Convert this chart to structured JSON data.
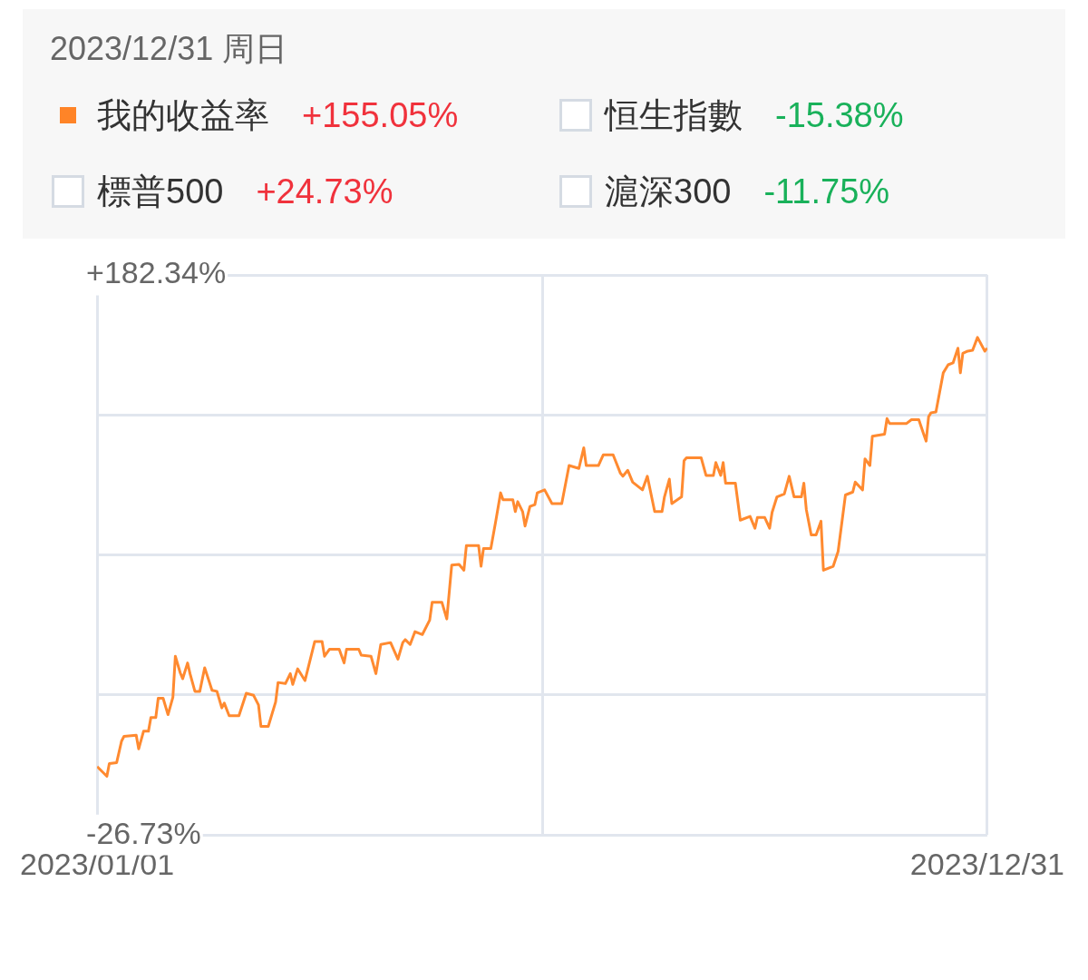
{
  "chart_data": [
    {
      "type": "other",
      "title": "2023/12/31 周日",
      "categories": [
        "我的收益率",
        "恒生指數",
        "標普500",
        "滬深300"
      ],
      "value_labels": [
        "+155.05%",
        "-15.38%",
        "+24.73%",
        "-11.75%"
      ],
      "colors": [
        "#ff8427",
        null,
        null,
        null
      ]
    },
    {
      "type": "line",
      "marker": "none",
      "line_style": "solid",
      "grid": true,
      "legend": false,
      "xlim": [
        "2023-01-01",
        "2023-12-31"
      ],
      "xticks": [
        {
          "value": "2023-01-01",
          "label": "2023/01/01"
        },
        {
          "value": "2023-07-02",
          "label": null
        },
        {
          "value": "2023-12-31",
          "label": "2023/12/31"
        }
      ],
      "ylim": [
        -26.73,
        182.34
      ],
      "yticks": [
        {
          "value": -26.73,
          "label": "-26.73%"
        },
        {
          "value": 25.54,
          "label": null
        },
        {
          "value": 77.8,
          "label": null
        },
        {
          "value": 130.07,
          "label": null
        },
        {
          "value": 182.34,
          "label": "+182.34%"
        }
      ],
      "x": [
        "2023-01-01",
        "2023-01-05",
        "2023-01-06",
        "2023-01-09",
        "2023-01-11",
        "2023-01-12",
        "2023-01-17",
        "2023-01-18",
        "2023-01-20",
        "2023-01-22",
        "2023-01-23",
        "2023-01-25",
        "2023-01-26",
        "2023-01-28",
        "2023-01-30",
        "2023-02-01",
        "2023-02-02",
        "2023-02-04",
        "2023-02-05",
        "2023-02-07",
        "2023-02-08",
        "2023-02-10",
        "2023-02-12",
        "2023-02-14",
        "2023-02-17",
        "2023-02-19",
        "2023-02-21",
        "2023-02-22",
        "2023-02-24",
        "2023-02-28",
        "2023-03-03",
        "2023-03-06",
        "2023-03-08",
        "2023-03-09",
        "2023-03-12",
        "2023-03-15",
        "2023-03-16",
        "2023-03-19",
        "2023-03-21",
        "2023-03-22",
        "2023-03-24",
        "2023-03-27",
        "2023-03-31",
        "2023-04-03",
        "2023-04-04",
        "2023-04-06",
        "2023-04-10",
        "2023-04-12",
        "2023-04-13",
        "2023-04-18",
        "2023-04-19",
        "2023-04-23",
        "2023-04-25",
        "2023-04-27",
        "2023-05-01",
        "2023-05-04",
        "2023-05-06",
        "2023-05-07",
        "2023-05-09",
        "2023-05-11",
        "2023-05-14",
        "2023-05-17",
        "2023-05-18",
        "2023-05-22",
        "2023-05-24",
        "2023-05-26",
        "2023-05-29",
        "2023-05-31",
        "2023-06-01",
        "2023-06-06",
        "2023-06-07",
        "2023-06-08",
        "2023-06-11",
        "2023-06-13",
        "2023-06-15",
        "2023-06-16",
        "2023-06-20",
        "2023-06-21",
        "2023-06-22",
        "2023-06-24",
        "2023-06-25",
        "2023-06-27",
        "2023-06-29",
        "2023-06-30",
        "2023-07-03",
        "2023-07-06",
        "2023-07-10",
        "2023-07-13",
        "2023-07-17",
        "2023-07-19",
        "2023-07-20",
        "2023-07-25",
        "2023-07-27",
        "2023-07-31",
        "2023-08-03",
        "2023-08-04",
        "2023-08-06",
        "2023-08-08",
        "2023-08-12",
        "2023-08-14",
        "2023-08-17",
        "2023-08-20",
        "2023-08-21",
        "2023-08-23",
        "2023-08-24",
        "2023-08-28",
        "2023-08-29",
        "2023-08-30",
        "2023-09-05",
        "2023-09-07",
        "2023-09-10",
        "2023-09-11",
        "2023-09-13",
        "2023-09-14",
        "2023-09-15",
        "2023-09-19",
        "2023-09-21",
        "2023-09-25",
        "2023-09-27",
        "2023-09-28",
        "2023-10-01",
        "2023-10-03",
        "2023-10-04",
        "2023-10-06",
        "2023-10-09",
        "2023-10-11",
        "2023-10-13",
        "2023-10-16",
        "2023-10-17",
        "2023-10-18",
        "2023-10-20",
        "2023-10-22",
        "2023-10-24",
        "2023-10-25",
        "2023-10-29",
        "2023-10-31",
        "2023-11-03",
        "2023-11-06",
        "2023-11-07",
        "2023-11-10",
        "2023-11-11",
        "2023-11-13",
        "2023-11-14",
        "2023-11-19",
        "2023-11-20",
        "2023-11-21",
        "2023-11-28",
        "2023-11-30",
        "2023-12-03",
        "2023-12-05",
        "2023-12-06",
        "2023-12-07",
        "2023-12-08",
        "2023-12-10",
        "2023-12-13",
        "2023-12-15",
        "2023-12-17",
        "2023-12-19",
        "2023-12-20",
        "2023-12-21",
        "2023-12-23",
        "2023-12-25",
        "2023-12-27",
        "2023-12-30",
        "2023-12-31"
      ],
      "series": [
        {
          "color": "#ff8a30",
          "values": [
            -1.2,
            -4.8,
            -0.1,
            0.3,
            8.3,
            10.1,
            10.5,
            5.4,
            12.0,
            12.0,
            17.1,
            17.1,
            24.3,
            24.3,
            18.2,
            24.7,
            40.0,
            33.8,
            31.6,
            37.5,
            33.5,
            26.9,
            26.9,
            35.7,
            27.3,
            26.9,
            20.7,
            22.5,
            17.8,
            17.8,
            26.2,
            25.4,
            21.8,
            13.8,
            13.8,
            22.9,
            30.2,
            29.8,
            33.5,
            29.5,
            35.3,
            30.9,
            45.5,
            45.5,
            40.0,
            42.6,
            42.6,
            37.5,
            42.6,
            42.6,
            40.4,
            40.0,
            33.5,
            44.4,
            45.1,
            38.9,
            45.1,
            46.2,
            44.4,
            49.2,
            48.1,
            53.5,
            60.1,
            60.1,
            53.9,
            74.0,
            74.3,
            72.1,
            81.3,
            81.3,
            73.6,
            80.2,
            80.2,
            90.4,
            101.0,
            98.4,
            98.4,
            94.0,
            97.7,
            94.0,
            88.6,
            95.9,
            96.6,
            101.0,
            102.1,
            97.0,
            97.0,
            111.2,
            110.1,
            117.8,
            111.2,
            111.2,
            115.2,
            115.2,
            108.3,
            107.2,
            109.4,
            105.0,
            102.1,
            107.2,
            94.0,
            94.0,
            99.5,
            106.1,
            97.0,
            99.5,
            113.0,
            114.1,
            114.1,
            107.5,
            107.5,
            112.3,
            107.5,
            112.3,
            104.6,
            104.6,
            90.8,
            92.2,
            87.8,
            91.8,
            91.8,
            87.8,
            93.7,
            99.5,
            100.6,
            107.2,
            99.5,
            99.5,
            104.6,
            94.8,
            85.3,
            85.3,
            90.4,
            72.1,
            73.6,
            79.1,
            100.2,
            101.3,
            105.0,
            102.1,
            113.7,
            111.2,
            122.1,
            122.9,
            128.7,
            126.9,
            126.9,
            128.3,
            128.3,
            122.9,
            120.3,
            129.4,
            130.9,
            131.2,
            145.8,
            148.8,
            149.5,
            155.0,
            145.8,
            153.1,
            153.9,
            154.2,
            159.0,
            153.9,
            155.05
          ]
        }
      ]
    }
  ]
}
